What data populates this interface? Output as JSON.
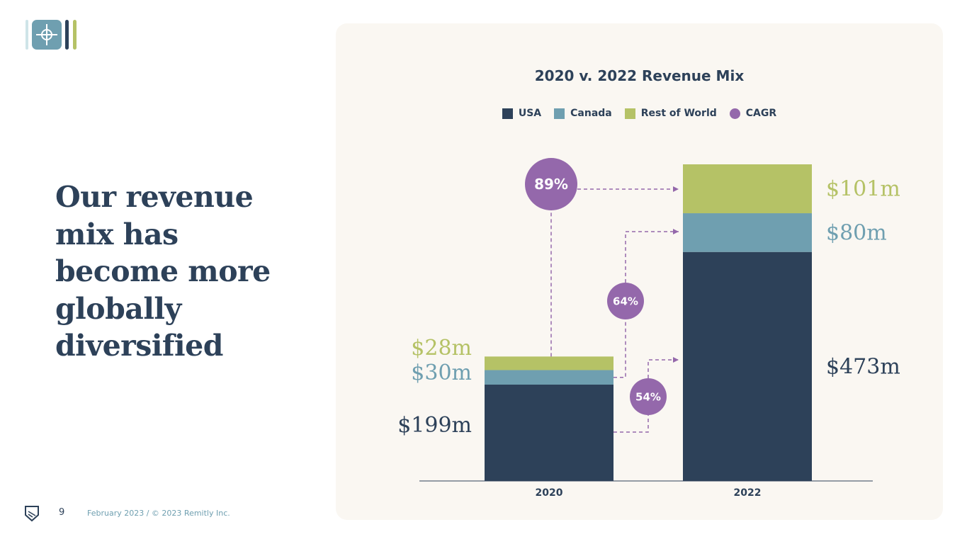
{
  "headline": "Our revenue mix has become more globally diversified",
  "footer": {
    "page_number": "9",
    "text": "February 2023 / © 2023 Remitly Inc."
  },
  "colors": {
    "usa": "#2d4159",
    "canada": "#6f9fb0",
    "row": "#b5c266",
    "cagr": "#9468ab",
    "card": "#faf7f2"
  },
  "chart_data": {
    "type": "bar",
    "stacked": true,
    "title": "2020 v. 2022 Revenue Mix",
    "categories": [
      "2020",
      "2022"
    ],
    "series": [
      {
        "name": "USA",
        "values": [
          199,
          473
        ],
        "labels": [
          "$199m",
          "$473m"
        ],
        "color": "#2d4159"
      },
      {
        "name": "Canada",
        "values": [
          30,
          80
        ],
        "labels": [
          "$30m",
          "$80m"
        ],
        "color": "#6f9fb0"
      },
      {
        "name": "Rest of World",
        "values": [
          28,
          101
        ],
        "labels": [
          "$28m",
          "$101m"
        ],
        "color": "#b5c266"
      }
    ],
    "cagr": {
      "name": "CAGR",
      "color": "#9468ab",
      "items": [
        {
          "series": "Rest of World",
          "label": "89%"
        },
        {
          "series": "Canada",
          "label": "64%"
        },
        {
          "series": "USA",
          "label": "54%"
        }
      ]
    },
    "legend": [
      "USA",
      "Canada",
      "Rest of World",
      "CAGR"
    ],
    "legend_position": "top",
    "grid": false,
    "ylim": [
      0,
      654
    ]
  }
}
